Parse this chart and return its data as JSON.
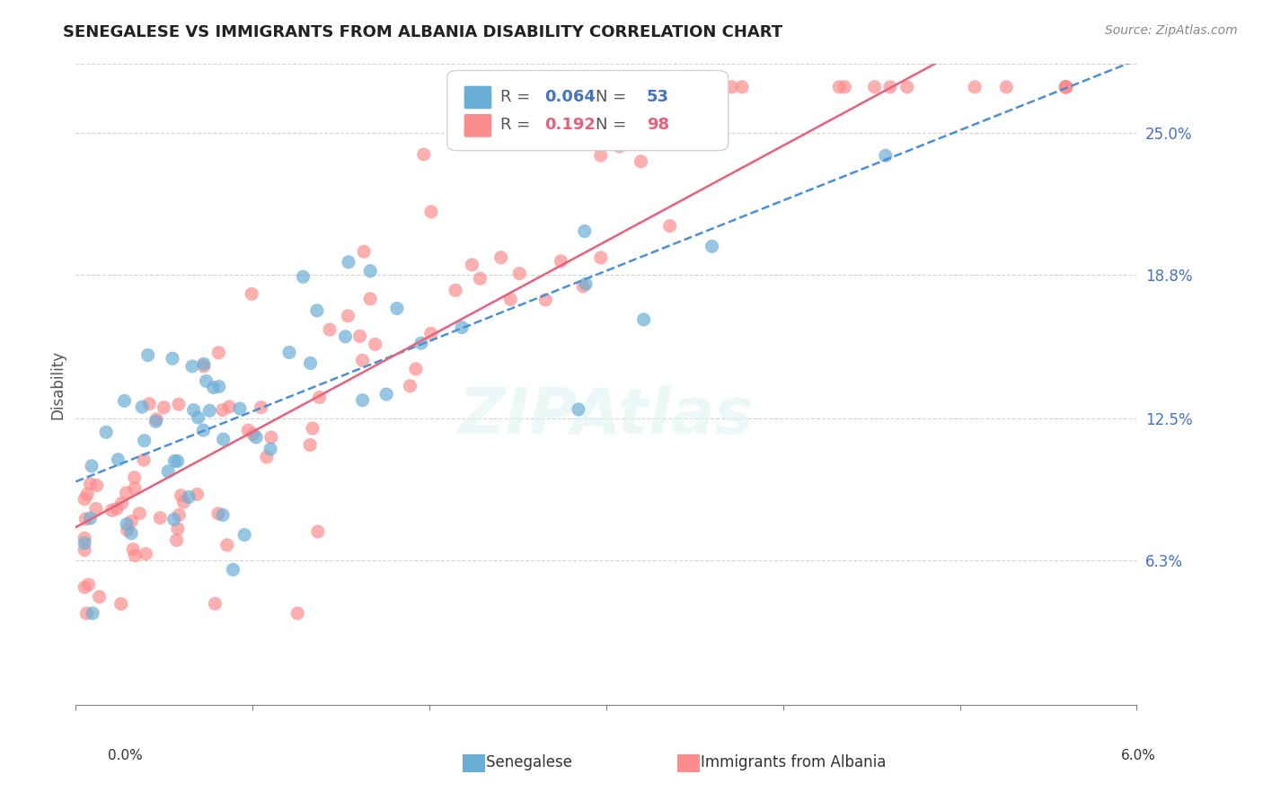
{
  "title": "SENEGALESE VS IMMIGRANTS FROM ALBANIA DISABILITY CORRELATION CHART",
  "source": "Source: ZipAtlas.com",
  "ylabel": "Disability",
  "ytick_labels": [
    "6.3%",
    "12.5%",
    "18.8%",
    "25.0%"
  ],
  "ytick_values": [
    0.063,
    0.125,
    0.188,
    0.25
  ],
  "xlim": [
    0.0,
    0.06
  ],
  "ylim": [
    0.0,
    0.28
  ],
  "senegalese_color": "#6baed6",
  "albania_color": "#fc8d8d",
  "trend_senegalese_color": "#4a90d9",
  "trend_albania_color": "#e8607a",
  "background_color": "#ffffff",
  "senegalese_R": 0.064,
  "senegalese_N": 53,
  "albania_R": 0.192,
  "albania_N": 98
}
